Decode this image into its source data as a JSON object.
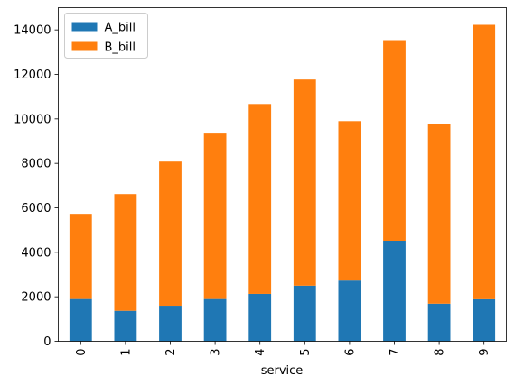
{
  "chart_data": {
    "type": "bar",
    "stacked": true,
    "title": "",
    "xlabel": "service",
    "ylabel": "",
    "categories": [
      "0",
      "1",
      "2",
      "3",
      "4",
      "5",
      "6",
      "7",
      "8",
      "9"
    ],
    "series": [
      {
        "name": "A_bill",
        "color": "#1f77b4",
        "values": [
          1900,
          1370,
          1600,
          1900,
          2130,
          2500,
          2730,
          4520,
          1690,
          1890
        ]
      },
      {
        "name": "B_bill",
        "color": "#ff7f0e",
        "values": [
          3830,
          5250,
          6480,
          7440,
          8540,
          9270,
          7170,
          9020,
          8080,
          12340
        ]
      }
    ],
    "ylim": [
      0,
      15000
    ],
    "yticks": [
      0,
      2000,
      4000,
      6000,
      8000,
      10000,
      12000,
      14000
    ],
    "grid": false,
    "legend": "top-left"
  }
}
